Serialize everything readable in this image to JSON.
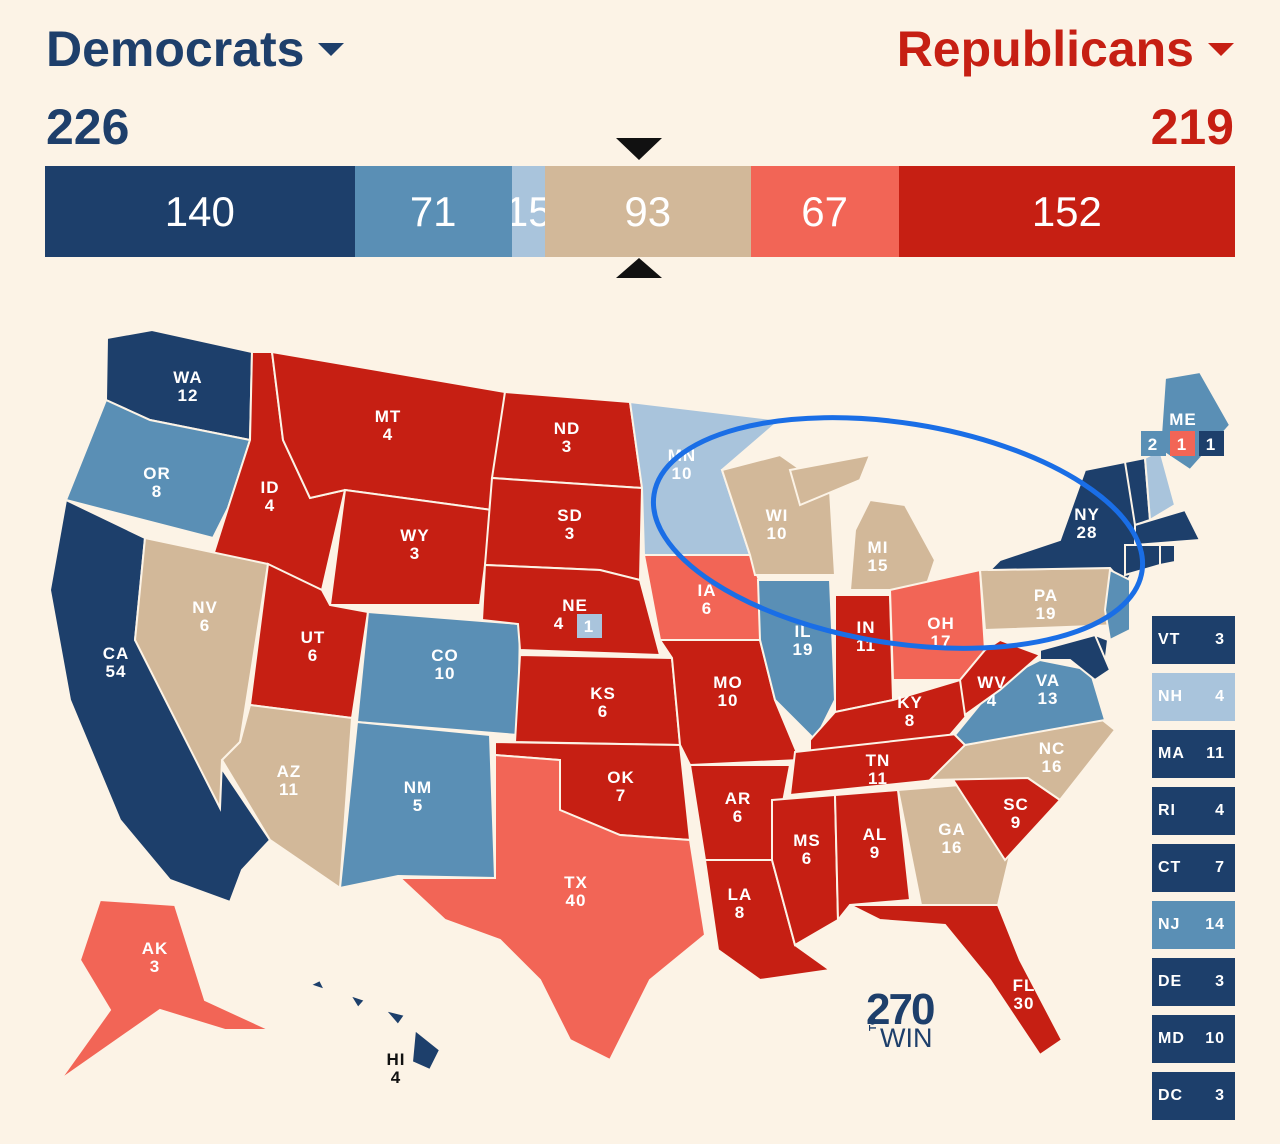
{
  "header": {
    "dem_label": "Democrats",
    "rep_label": "Republicans",
    "dem_total": "226",
    "rep_total": "219"
  },
  "colors": {
    "safe_dem": "#1d3f6b",
    "likely_dem": "#5a8fb5",
    "lean_dem": "#a9c4dc",
    "tossup": "#d2b899",
    "lean_rep": "#f26556",
    "safe_rep": "#c61f13",
    "circle": "#1a6ee6"
  },
  "bar": {
    "segments": [
      {
        "label": "140",
        "votes": 140,
        "rating": "safe_dem"
      },
      {
        "label": "71",
        "votes": 71,
        "rating": "likely_dem"
      },
      {
        "label": "15",
        "votes": 15,
        "rating": "lean_dem"
      },
      {
        "label": "93",
        "votes": 93,
        "rating": "tossup"
      },
      {
        "label": "67",
        "votes": 67,
        "rating": "lean_rep"
      },
      {
        "label": "152",
        "votes": 152,
        "rating": "safe_rep"
      }
    ]
  },
  "states": [
    {
      "abbr": "WA",
      "ev": "12",
      "rating": "safe_dem"
    },
    {
      "abbr": "OR",
      "ev": "8",
      "rating": "likely_dem"
    },
    {
      "abbr": "CA",
      "ev": "54",
      "rating": "safe_dem"
    },
    {
      "abbr": "ID",
      "ev": "4",
      "rating": "safe_rep"
    },
    {
      "abbr": "NV",
      "ev": "6",
      "rating": "tossup"
    },
    {
      "abbr": "MT",
      "ev": "4",
      "rating": "safe_rep"
    },
    {
      "abbr": "WY",
      "ev": "3",
      "rating": "safe_rep"
    },
    {
      "abbr": "UT",
      "ev": "6",
      "rating": "safe_rep"
    },
    {
      "abbr": "AZ",
      "ev": "11",
      "rating": "tossup"
    },
    {
      "abbr": "CO",
      "ev": "10",
      "rating": "likely_dem"
    },
    {
      "abbr": "NM",
      "ev": "5",
      "rating": "likely_dem"
    },
    {
      "abbr": "ND",
      "ev": "3",
      "rating": "safe_rep"
    },
    {
      "abbr": "SD",
      "ev": "3",
      "rating": "safe_rep"
    },
    {
      "abbr": "NE",
      "ev": "4",
      "rating": "safe_rep"
    },
    {
      "abbr": "KS",
      "ev": "6",
      "rating": "safe_rep"
    },
    {
      "abbr": "OK",
      "ev": "7",
      "rating": "safe_rep"
    },
    {
      "abbr": "TX",
      "ev": "40",
      "rating": "lean_rep"
    },
    {
      "abbr": "MN",
      "ev": "10",
      "rating": "lean_dem"
    },
    {
      "abbr": "IA",
      "ev": "6",
      "rating": "lean_rep"
    },
    {
      "abbr": "MO",
      "ev": "10",
      "rating": "safe_rep"
    },
    {
      "abbr": "AR",
      "ev": "6",
      "rating": "safe_rep"
    },
    {
      "abbr": "LA",
      "ev": "8",
      "rating": "safe_rep"
    },
    {
      "abbr": "WI",
      "ev": "10",
      "rating": "tossup"
    },
    {
      "abbr": "IL",
      "ev": "19",
      "rating": "likely_dem"
    },
    {
      "abbr": "MI",
      "ev": "15",
      "rating": "tossup"
    },
    {
      "abbr": "IN",
      "ev": "11",
      "rating": "safe_rep"
    },
    {
      "abbr": "OH",
      "ev": "17",
      "rating": "lean_rep"
    },
    {
      "abbr": "KY",
      "ev": "8",
      "rating": "safe_rep"
    },
    {
      "abbr": "TN",
      "ev": "11",
      "rating": "safe_rep"
    },
    {
      "abbr": "MS",
      "ev": "6",
      "rating": "safe_rep"
    },
    {
      "abbr": "AL",
      "ev": "9",
      "rating": "safe_rep"
    },
    {
      "abbr": "GA",
      "ev": "16",
      "rating": "tossup"
    },
    {
      "abbr": "FL",
      "ev": "30",
      "rating": "safe_rep"
    },
    {
      "abbr": "SC",
      "ev": "9",
      "rating": "safe_rep"
    },
    {
      "abbr": "NC",
      "ev": "16",
      "rating": "tossup"
    },
    {
      "abbr": "VA",
      "ev": "13",
      "rating": "likely_dem"
    },
    {
      "abbr": "WV",
      "ev": "4",
      "rating": "safe_rep"
    },
    {
      "abbr": "PA",
      "ev": "19",
      "rating": "tossup"
    },
    {
      "abbr": "NY",
      "ev": "28",
      "rating": "safe_dem"
    },
    {
      "abbr": "ME",
      "ev": "",
      "rating": "likely_dem"
    },
    {
      "abbr": "AK",
      "ev": "3",
      "rating": "lean_rep"
    },
    {
      "abbr": "HI",
      "ev": "4",
      "rating": "safe_dem"
    }
  ],
  "nebraska_district": {
    "ev": "1",
    "rating": "lean_dem"
  },
  "maine_split": [
    {
      "ev": "2",
      "rating": "likely_dem"
    },
    {
      "ev": "1",
      "rating": "lean_rep"
    },
    {
      "ev": "1",
      "rating": "safe_dem"
    }
  ],
  "small_states": [
    {
      "abbr": "VT",
      "ev": "3",
      "rating": "safe_dem"
    },
    {
      "abbr": "NH",
      "ev": "4",
      "rating": "lean_dem"
    },
    {
      "abbr": "MA",
      "ev": "11",
      "rating": "safe_dem"
    },
    {
      "abbr": "RI",
      "ev": "4",
      "rating": "safe_dem"
    },
    {
      "abbr": "CT",
      "ev": "7",
      "rating": "safe_dem"
    },
    {
      "abbr": "NJ",
      "ev": "14",
      "rating": "likely_dem"
    },
    {
      "abbr": "DE",
      "ev": "3",
      "rating": "safe_dem"
    },
    {
      "abbr": "MD",
      "ev": "10",
      "rating": "safe_dem"
    },
    {
      "abbr": "DC",
      "ev": "3",
      "rating": "safe_dem"
    }
  ],
  "logo": {
    "number": "270",
    "to": "TO",
    "win": "WIN"
  }
}
